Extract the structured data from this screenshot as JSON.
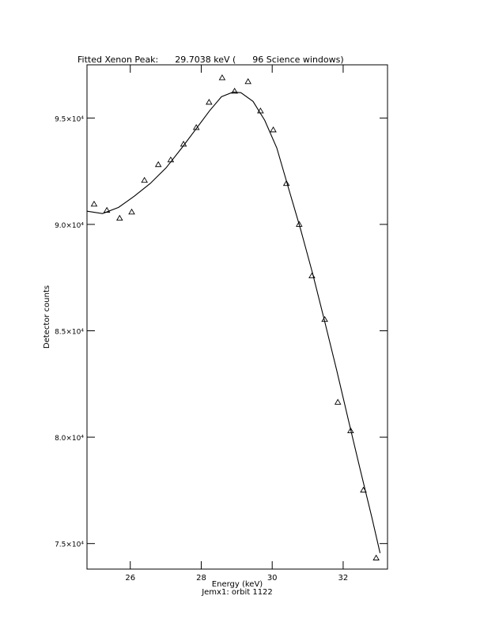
{
  "chart_data": {
    "type": "line",
    "title": "Fitted Xenon Peak:      29.7038 keV (      96 Science windows)",
    "x_label": "Energy (keV)",
    "subtitle": "Jemx1: orbit 1122",
    "y_label": "Detector counts",
    "xlim": [
      24.78,
      33.25
    ],
    "ylim": [
      73800,
      97500
    ],
    "xticks": [
      26,
      28,
      30,
      32
    ],
    "yticks": [
      {
        "value": 75000,
        "label": "7.5×10⁴"
      },
      {
        "value": 80000,
        "label": "8.0×10⁴"
      },
      {
        "value": 85000,
        "label": "8.5×10⁴"
      },
      {
        "value": 90000,
        "label": "9.0×10⁴"
      },
      {
        "value": 95000,
        "label": "9.5×10⁴"
      }
    ],
    "series": [
      {
        "type": "scatter",
        "marker": "triangle",
        "color": "#000000",
        "x": [
          24.98,
          25.34,
          25.7,
          26.04,
          26.4,
          26.79,
          27.14,
          27.5,
          27.86,
          28.22,
          28.59,
          28.94,
          29.32,
          29.67,
          30.03,
          30.4,
          30.76,
          31.12,
          31.48,
          31.85,
          32.21,
          32.57,
          32.93
        ],
        "values": [
          90950,
          90660,
          90290,
          90580,
          92070,
          92810,
          93030,
          93770,
          94550,
          95740,
          96890,
          96260,
          96710,
          95330,
          94440,
          91920,
          90000,
          87580,
          85530,
          81640,
          80300,
          77510,
          74320
        ]
      },
      {
        "type": "line",
        "color": "#000000",
        "x": [
          24.78,
          25.22,
          25.67,
          26.11,
          26.56,
          27.01,
          27.45,
          27.9,
          28.23,
          28.57,
          28.9,
          29.12,
          29.46,
          29.79,
          30.13,
          30.46,
          30.8,
          31.14,
          31.47,
          31.81,
          32.14,
          32.48,
          32.81,
          33.04
        ],
        "values": [
          90620,
          90510,
          90800,
          91320,
          91920,
          92660,
          93590,
          94590,
          95330,
          96000,
          96220,
          96190,
          95780,
          94890,
          93590,
          91700,
          89770,
          87690,
          85500,
          83200,
          80860,
          78480,
          76220,
          74550
        ]
      }
    ]
  }
}
